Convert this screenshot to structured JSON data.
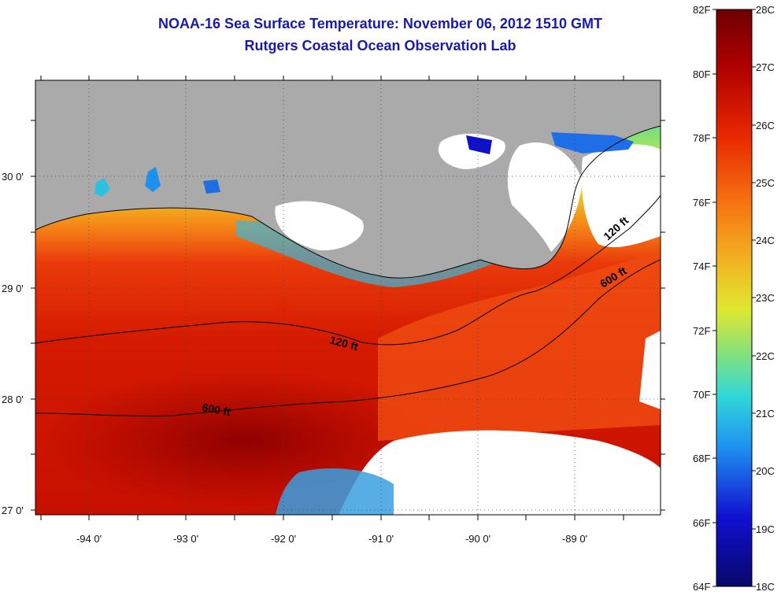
{
  "header": {
    "title": "NOAA-16 Sea Surface Temperature:  November 06, 2012 1510 GMT",
    "subtitle": "Rutgers Coastal Ocean Observation Lab"
  },
  "map": {
    "longitude_ticks": [
      "-94 0'",
      "-93 0'",
      "-92 0'",
      "-91 0'",
      "-90 0'",
      "-89 0'"
    ],
    "latitude_ticks": [
      "30 0'",
      "29 0'",
      "28 0'",
      "27 0'"
    ],
    "contour_labels": [
      "120 ft",
      "600 ft",
      "120 ft",
      "600 ft"
    ]
  },
  "colorbar": {
    "fahrenheit_labels": [
      "82F",
      "80F",
      "78F",
      "76F",
      "74F",
      "72F",
      "70F",
      "68F",
      "66F",
      "64F"
    ],
    "celsius_labels": [
      "28C",
      "27C",
      "26C",
      "25C",
      "24C",
      "23C",
      "22C",
      "21C",
      "20C",
      "19C",
      "18C"
    ],
    "colors": [
      "#7a0000",
      "#b80000",
      "#e83000",
      "#f57a10",
      "#f2c020",
      "#d8ea30",
      "#7fe07a",
      "#36d2d2",
      "#1e8cf0",
      "#1414d0",
      "#0a0a80"
    ]
  },
  "colors": {
    "land": "#aaaaaa",
    "cloud": "#ffffff",
    "contour": "#000000",
    "title": "#1a1aa8"
  }
}
